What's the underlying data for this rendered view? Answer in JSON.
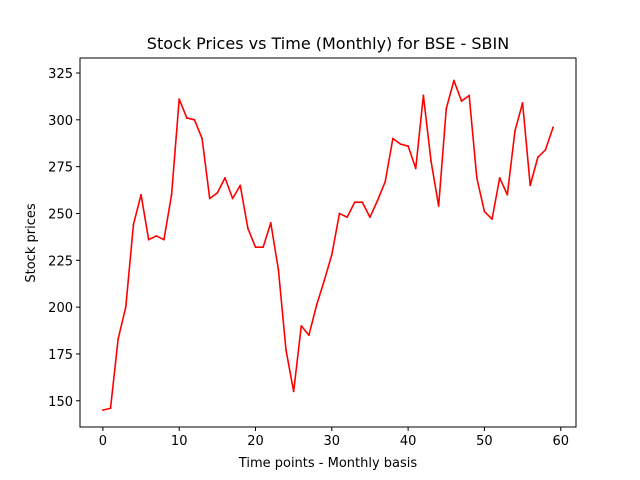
{
  "chart_data": {
    "type": "line",
    "title": "Stock Prices vs Time (Monthly) for BSE - SBIN",
    "xlabel": "Time points - Monthly basis",
    "ylabel": "Stock prices",
    "xlim": [
      -3,
      62
    ],
    "ylim": [
      136,
      333
    ],
    "x_ticks": [
      0,
      10,
      20,
      30,
      40,
      50,
      60
    ],
    "y_ticks": [
      150,
      175,
      200,
      225,
      250,
      275,
      300,
      325
    ],
    "grid": false,
    "legend": "none",
    "series": [
      {
        "color": "#ff0000",
        "x": [
          0,
          1,
          2,
          3,
          4,
          5,
          6,
          7,
          8,
          9,
          10,
          11,
          12,
          13,
          14,
          15,
          16,
          17,
          18,
          19,
          20,
          21,
          22,
          23,
          24,
          25,
          26,
          27,
          28,
          29,
          30,
          31,
          32,
          33,
          34,
          35,
          36,
          37,
          38,
          39,
          40,
          41,
          42,
          43,
          44,
          45,
          46,
          47,
          48,
          49,
          50,
          51,
          52,
          53,
          54,
          55,
          56,
          57,
          58,
          59
        ],
        "values": [
          145,
          146,
          183,
          200,
          244,
          260,
          236,
          238,
          236,
          260,
          311,
          301,
          300,
          290,
          258,
          261,
          269,
          258,
          265,
          242,
          232,
          232,
          245,
          220,
          177,
          155,
          190,
          185,
          201,
          214,
          228,
          250,
          248,
          256,
          256,
          248,
          257,
          267,
          290,
          287,
          286,
          274,
          313,
          278,
          254,
          306,
          321,
          310,
          313,
          269,
          251,
          247,
          269,
          260,
          294,
          309,
          265,
          280,
          284,
          296
        ]
      }
    ]
  }
}
